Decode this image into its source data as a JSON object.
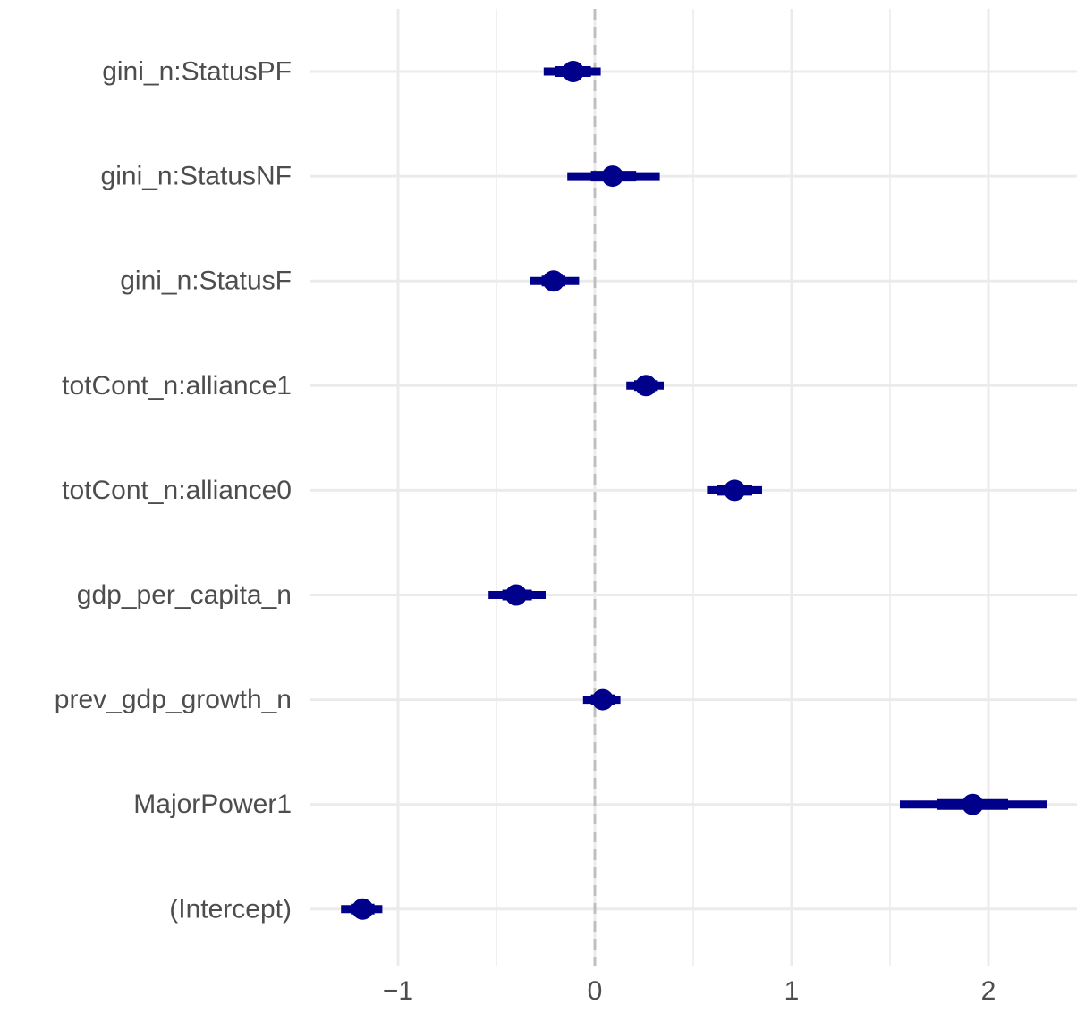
{
  "chart_data": {
    "type": "coefficient-plot",
    "title": "",
    "xlabel": "",
    "ylabel": "",
    "xlim": [
      -1.45,
      2.45
    ],
    "x_ticks": [
      {
        "value": -1,
        "label": "−1"
      },
      {
        "value": 0,
        "label": "0"
      },
      {
        "value": 1,
        "label": "1"
      },
      {
        "value": 2,
        "label": "2"
      }
    ],
    "x_minor_ticks": [
      -0.5,
      0.5,
      1.5
    ],
    "reference_line": 0,
    "grid": true,
    "colors": {
      "estimate": "#00008b",
      "grid": "#ebebeb",
      "reference": "#bfbfbf",
      "text": "#4d4d4d"
    },
    "terms": [
      {
        "label": "gini_n:StatusPF",
        "estimate": -0.11,
        "inner": [
          -0.2,
          -0.02
        ],
        "outer": [
          -0.26,
          0.03
        ]
      },
      {
        "label": "gini_n:StatusNF",
        "estimate": 0.09,
        "inner": [
          -0.02,
          0.21
        ],
        "outer": [
          -0.14,
          0.33
        ]
      },
      {
        "label": "gini_n:StatusF",
        "estimate": -0.21,
        "inner": [
          -0.27,
          -0.15
        ],
        "outer": [
          -0.33,
          -0.08
        ]
      },
      {
        "label": "totCont_n:alliance1",
        "estimate": 0.26,
        "inner": [
          0.2,
          0.32
        ],
        "outer": [
          0.16,
          0.35
        ]
      },
      {
        "label": "totCont_n:alliance0",
        "estimate": 0.71,
        "inner": [
          0.62,
          0.8
        ],
        "outer": [
          0.57,
          0.85
        ]
      },
      {
        "label": "gdp_per_capita_n",
        "estimate": -0.4,
        "inner": [
          -0.47,
          -0.32
        ],
        "outer": [
          -0.54,
          -0.25
        ]
      },
      {
        "label": "prev_gdp_growth_n",
        "estimate": 0.04,
        "inner": [
          -0.02,
          0.1
        ],
        "outer": [
          -0.06,
          0.13
        ]
      },
      {
        "label": "MajorPower1",
        "estimate": 1.92,
        "inner": [
          1.74,
          2.1
        ],
        "outer": [
          1.55,
          2.3
        ]
      },
      {
        "label": "(Intercept)",
        "estimate": -1.18,
        "inner": [
          -1.24,
          -1.12
        ],
        "outer": [
          -1.29,
          -1.08
        ]
      }
    ]
  }
}
